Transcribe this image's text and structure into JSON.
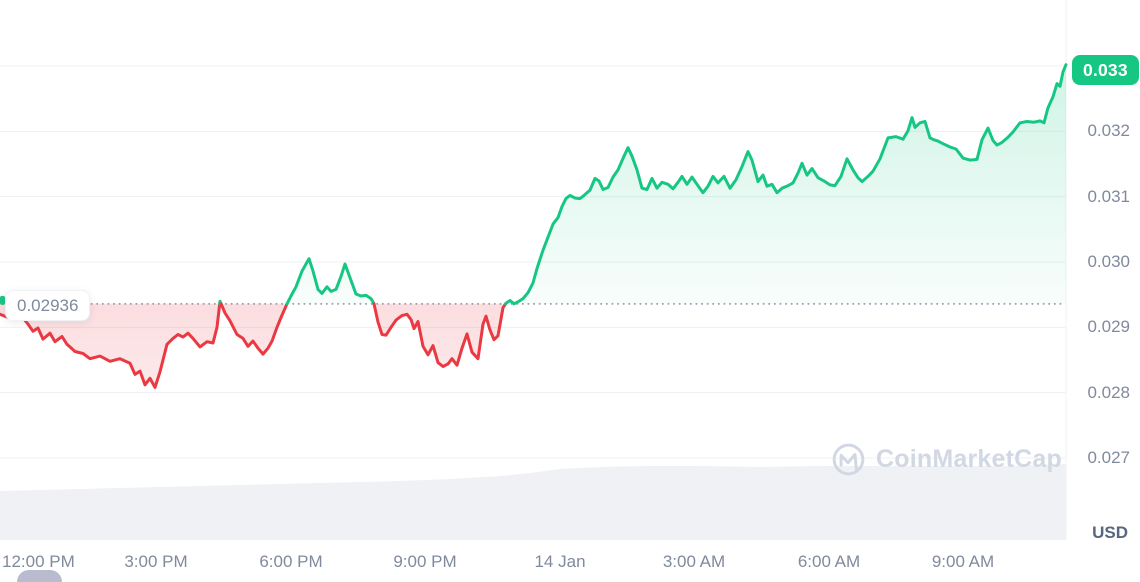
{
  "header": {
    "current_price_badge": "0.033",
    "baseline_label": "0.02936"
  },
  "watermark": {
    "brand": "CoinMarketCap"
  },
  "axes": {
    "y_ticks": [
      "0.032",
      "0.031",
      "0.030",
      "0.029",
      "0.028",
      "0.027"
    ],
    "y_unit": "USD",
    "x_ticks": [
      "12:00 PM",
      "3:00 PM",
      "6:00 PM",
      "9:00 PM",
      "14 Jan",
      "3:00 AM",
      "6:00 AM",
      "9:00 AM"
    ]
  },
  "colors": {
    "up": "#16c784",
    "down": "#ea3943",
    "grid": "#eef1f6",
    "axis_text": "#808a9d",
    "unit_text": "#58667e",
    "baseline_dots": "#9aa3b5",
    "volume_fill": "#f0f1f5",
    "badge_bg": "#16c784",
    "badge_text": "#ffffff",
    "watermark_text": "#d2d8e3",
    "partial_pill": "#b8bcce"
  },
  "chart_data": {
    "type": "area",
    "unit": "USD",
    "baseline_value": 0.02936,
    "last_value": 0.033,
    "ylim_gridlines": [
      0.027,
      0.033
    ],
    "x_tick_labels": [
      "12:00 PM",
      "3:00 PM",
      "6:00 PM",
      "9:00 PM",
      "14 Jan",
      "3:00 AM",
      "6:00 AM",
      "9:00 AM"
    ],
    "y_tick_values": [
      0.032,
      0.031,
      0.03,
      0.029,
      0.028,
      0.027
    ],
    "series": [
      {
        "name": "price",
        "points": [
          [
            0,
            0.0292
          ],
          [
            8,
            0.02915
          ],
          [
            16,
            0.02912
          ],
          [
            22,
            0.02916
          ],
          [
            28,
            0.02905
          ],
          [
            33,
            0.02894
          ],
          [
            38,
            0.02899
          ],
          [
            43,
            0.02882
          ],
          [
            50,
            0.02891
          ],
          [
            55,
            0.02878
          ],
          [
            62,
            0.02886
          ],
          [
            67,
            0.02874
          ],
          [
            75,
            0.02863
          ],
          [
            83,
            0.0286
          ],
          [
            90,
            0.02852
          ],
          [
            100,
            0.02856
          ],
          [
            110,
            0.02848
          ],
          [
            120,
            0.02852
          ],
          [
            130,
            0.02845
          ],
          [
            135,
            0.02828
          ],
          [
            140,
            0.02833
          ],
          [
            145,
            0.02812
          ],
          [
            150,
            0.02822
          ],
          [
            155,
            0.02808
          ],
          [
            160,
            0.02832
          ],
          [
            167,
            0.02874
          ],
          [
            173,
            0.02883
          ],
          [
            178,
            0.02889
          ],
          [
            183,
            0.02885
          ],
          [
            188,
            0.02891
          ],
          [
            193,
            0.02883
          ],
          [
            200,
            0.0287
          ],
          [
            207,
            0.02878
          ],
          [
            213,
            0.02876
          ],
          [
            217,
            0.029
          ],
          [
            220,
            0.0294
          ],
          [
            225,
            0.02922
          ],
          [
            230,
            0.0291
          ],
          [
            237,
            0.02889
          ],
          [
            243,
            0.02883
          ],
          [
            248,
            0.02871
          ],
          [
            253,
            0.02879
          ],
          [
            258,
            0.02868
          ],
          [
            263,
            0.02859
          ],
          [
            268,
            0.02868
          ],
          [
            272,
            0.02879
          ],
          [
            277,
            0.029
          ],
          [
            281,
            0.02915
          ],
          [
            287,
            0.02936
          ],
          [
            291,
            0.02948
          ],
          [
            296,
            0.02962
          ],
          [
            302,
            0.02986
          ],
          [
            309,
            0.03005
          ],
          [
            313,
            0.02986
          ],
          [
            318,
            0.02958
          ],
          [
            322,
            0.02952
          ],
          [
            327,
            0.02962
          ],
          [
            331,
            0.02955
          ],
          [
            336,
            0.02958
          ],
          [
            341,
            0.02978
          ],
          [
            345,
            0.02997
          ],
          [
            350,
            0.02976
          ],
          [
            356,
            0.02951
          ],
          [
            361,
            0.02948
          ],
          [
            366,
            0.02949
          ],
          [
            371,
            0.02944
          ],
          [
            374,
            0.02936
          ],
          [
            378,
            0.02908
          ],
          [
            382,
            0.02889
          ],
          [
            386,
            0.02888
          ],
          [
            391,
            0.029
          ],
          [
            396,
            0.02911
          ],
          [
            402,
            0.02918
          ],
          [
            407,
            0.0292
          ],
          [
            411,
            0.02912
          ],
          [
            414,
            0.02898
          ],
          [
            418,
            0.02909
          ],
          [
            423,
            0.02871
          ],
          [
            428,
            0.02858
          ],
          [
            433,
            0.02872
          ],
          [
            438,
            0.02846
          ],
          [
            443,
            0.0284
          ],
          [
            448,
            0.02844
          ],
          [
            452,
            0.02852
          ],
          [
            457,
            0.02842
          ],
          [
            462,
            0.02868
          ],
          [
            467,
            0.0289
          ],
          [
            472,
            0.02862
          ],
          [
            478,
            0.02852
          ],
          [
            483,
            0.02905
          ],
          [
            486,
            0.02917
          ],
          [
            490,
            0.02896
          ],
          [
            494,
            0.02881
          ],
          [
            498,
            0.02887
          ],
          [
            503,
            0.0293
          ],
          [
            506,
            0.02937
          ],
          [
            510,
            0.02941
          ],
          [
            514,
            0.02936
          ],
          [
            518,
            0.02939
          ],
          [
            523,
            0.02944
          ],
          [
            528,
            0.02953
          ],
          [
            533,
            0.02968
          ],
          [
            537,
            0.0299
          ],
          [
            543,
            0.03018
          ],
          [
            548,
            0.03038
          ],
          [
            553,
            0.03058
          ],
          [
            558,
            0.03068
          ],
          [
            562,
            0.03085
          ],
          [
            566,
            0.03097
          ],
          [
            570,
            0.03102
          ],
          [
            575,
            0.03098
          ],
          [
            580,
            0.03097
          ],
          [
            584,
            0.03102
          ],
          [
            590,
            0.0311
          ],
          [
            595,
            0.03128
          ],
          [
            599,
            0.03124
          ],
          [
            603,
            0.03111
          ],
          [
            608,
            0.03114
          ],
          [
            613,
            0.0313
          ],
          [
            618,
            0.03141
          ],
          [
            624,
            0.03162
          ],
          [
            628,
            0.03175
          ],
          [
            632,
            0.03162
          ],
          [
            637,
            0.03141
          ],
          [
            642,
            0.03113
          ],
          [
            647,
            0.03111
          ],
          [
            652,
            0.03128
          ],
          [
            657,
            0.03113
          ],
          [
            662,
            0.03122
          ],
          [
            668,
            0.03119
          ],
          [
            673,
            0.03112
          ],
          [
            678,
            0.03122
          ],
          [
            682,
            0.03131
          ],
          [
            687,
            0.03119
          ],
          [
            692,
            0.0313
          ],
          [
            697,
            0.03119
          ],
          [
            703,
            0.03106
          ],
          [
            708,
            0.03116
          ],
          [
            713,
            0.03131
          ],
          [
            718,
            0.03121
          ],
          [
            724,
            0.03131
          ],
          [
            730,
            0.03113
          ],
          [
            736,
            0.03126
          ],
          [
            742,
            0.03146
          ],
          [
            748,
            0.03169
          ],
          [
            752,
            0.03156
          ],
          [
            758,
            0.03123
          ],
          [
            763,
            0.03133
          ],
          [
            767,
            0.03116
          ],
          [
            772,
            0.03119
          ],
          [
            777,
            0.03106
          ],
          [
            782,
            0.03113
          ],
          [
            787,
            0.03116
          ],
          [
            793,
            0.03121
          ],
          [
            798,
            0.03136
          ],
          [
            802,
            0.03151
          ],
          [
            807,
            0.03133
          ],
          [
            812,
            0.03143
          ],
          [
            818,
            0.03129
          ],
          [
            825,
            0.03123
          ],
          [
            830,
            0.03118
          ],
          [
            835,
            0.03117
          ],
          [
            841,
            0.03131
          ],
          [
            847,
            0.03158
          ],
          [
            853,
            0.03141
          ],
          [
            858,
            0.03129
          ],
          [
            862,
            0.03123
          ],
          [
            868,
            0.03131
          ],
          [
            873,
            0.03139
          ],
          [
            880,
            0.03158
          ],
          [
            888,
            0.0319
          ],
          [
            896,
            0.03192
          ],
          [
            903,
            0.03188
          ],
          [
            908,
            0.03201
          ],
          [
            912,
            0.03221
          ],
          [
            915,
            0.03206
          ],
          [
            920,
            0.03213
          ],
          [
            925,
            0.03215
          ],
          [
            930,
            0.0319
          ],
          [
            934,
            0.03187
          ],
          [
            938,
            0.03185
          ],
          [
            943,
            0.03181
          ],
          [
            950,
            0.03176
          ],
          [
            956,
            0.03173
          ],
          [
            963,
            0.03159
          ],
          [
            970,
            0.03156
          ],
          [
            977,
            0.03157
          ],
          [
            982,
            0.03187
          ],
          [
            988,
            0.03205
          ],
          [
            993,
            0.03186
          ],
          [
            997,
            0.03179
          ],
          [
            1002,
            0.03183
          ],
          [
            1008,
            0.03191
          ],
          [
            1013,
            0.03199
          ],
          [
            1020,
            0.03213
          ],
          [
            1027,
            0.03215
          ],
          [
            1034,
            0.03214
          ],
          [
            1040,
            0.03216
          ],
          [
            1044,
            0.03213
          ],
          [
            1048,
            0.03236
          ],
          [
            1053,
            0.03253
          ],
          [
            1057,
            0.03273
          ],
          [
            1060,
            0.03269
          ],
          [
            1063,
            0.03291
          ],
          [
            1066,
            0.03302
          ]
        ]
      }
    ],
    "volume_area": {
      "relative_heights": [
        [
          0,
          49
        ],
        [
          80,
          51
        ],
        [
          160,
          53
        ],
        [
          240,
          55
        ],
        [
          320,
          57
        ],
        [
          400,
          59
        ],
        [
          450,
          61
        ],
        [
          500,
          64
        ],
        [
          530,
          67
        ],
        [
          560,
          71
        ],
        [
          600,
          73
        ],
        [
          650,
          74
        ],
        [
          700,
          74
        ],
        [
          760,
          73
        ],
        [
          820,
          74
        ],
        [
          880,
          74
        ],
        [
          940,
          74
        ],
        [
          1000,
          74
        ],
        [
          1040,
          75
        ],
        [
          1066,
          76
        ]
      ]
    }
  }
}
